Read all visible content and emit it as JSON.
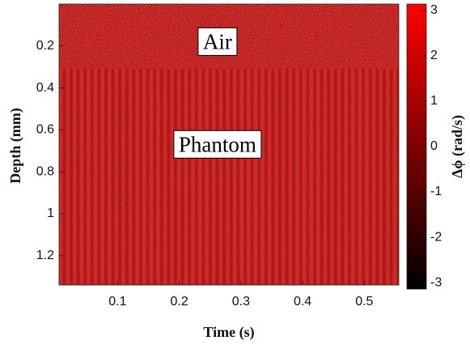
{
  "chart_data": {
    "type": "heatmap",
    "xlabel": "Time (s)",
    "ylabel": "Depth (mm)",
    "xlim": [
      0.005,
      0.556
    ],
    "xticks": [
      0.1,
      0.2,
      0.3,
      0.4,
      0.5
    ],
    "ylim": [
      0,
      1.34
    ],
    "yticks": [
      0.2,
      0.4,
      0.6,
      0.8,
      1,
      1.2
    ],
    "colorbar": {
      "label": "Δϕ (rad/s)",
      "clim": [
        -3.1416,
        3.1416
      ],
      "ticks": [
        -3,
        -2,
        -1,
        0,
        1,
        2,
        3
      ],
      "colors": [
        "#000000",
        "#ff0000"
      ]
    },
    "annotations": [
      {
        "text": "Air",
        "x": 0.262,
        "y": 0.19
      },
      {
        "text": "Phantom",
        "x": 0.262,
        "y": 0.68
      }
    ]
  }
}
